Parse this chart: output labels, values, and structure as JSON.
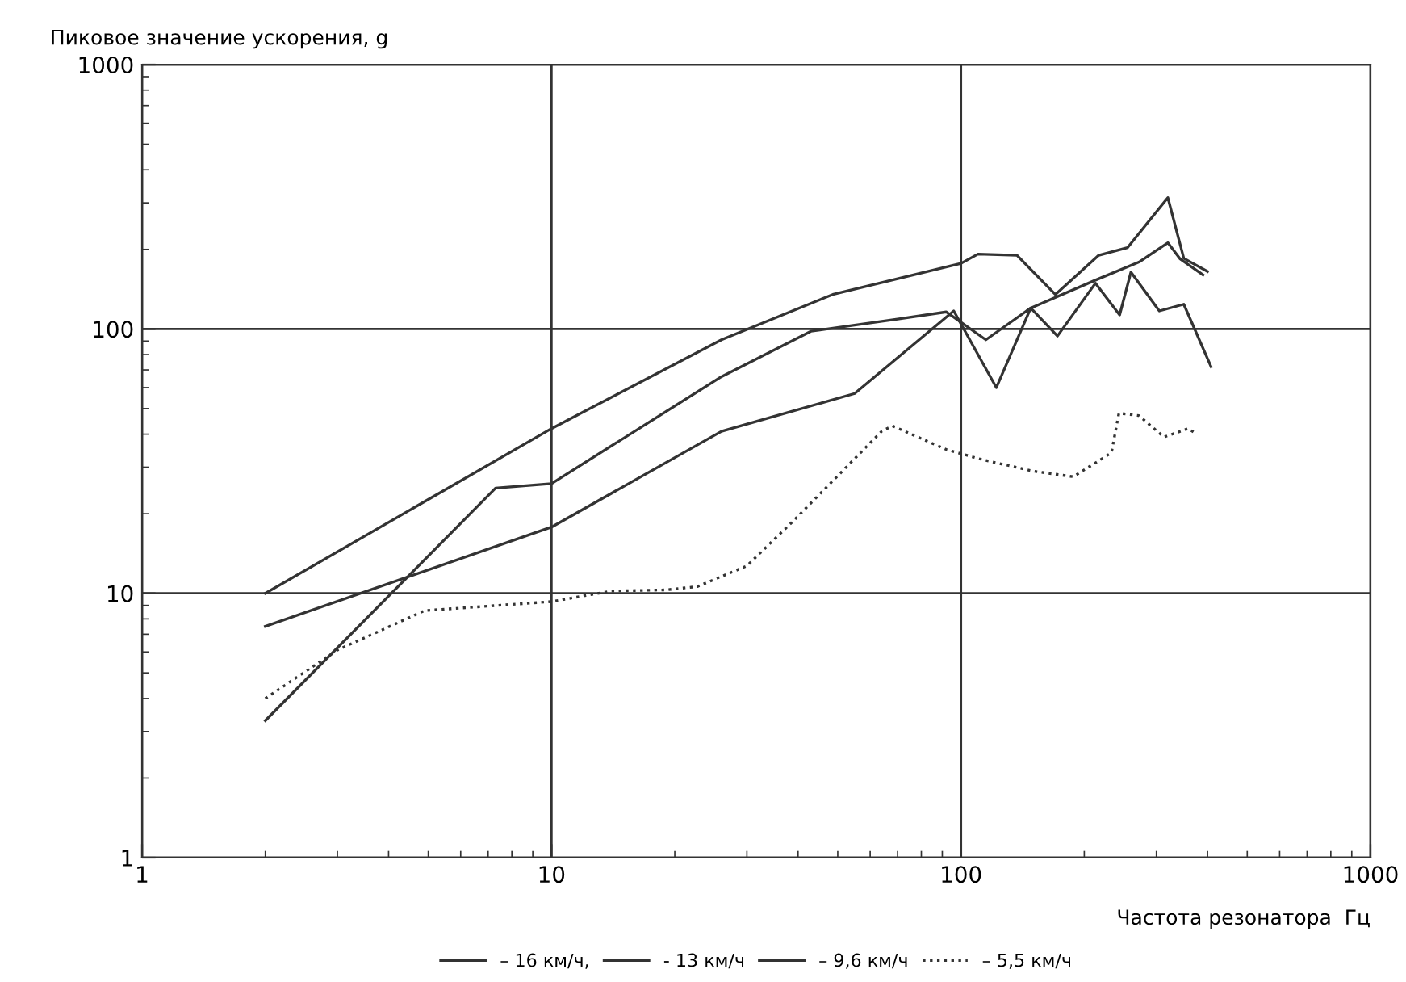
{
  "chart_data": {
    "type": "line",
    "ylabel": "Пиковое значение ускорения, g",
    "xlabel": "Частота резонатора  Гц",
    "log": "xy",
    "xlim": [
      1,
      1000
    ],
    "ylim": [
      1,
      1000
    ],
    "xticks": [
      1,
      10,
      100,
      1000
    ],
    "yticks": [
      1,
      10,
      100,
      1000
    ],
    "grid": true,
    "legend": "bottom",
    "marker": "none",
    "series": [
      {
        "name": "– 16 км/ч,",
        "color": "#333333",
        "line_style": "solid",
        "x": [
          2,
          10,
          26,
          48.6,
          100,
          110,
          137,
          170,
          217,
          255,
          320,
          350,
          400
        ],
        "values": [
          10,
          42,
          91,
          135,
          177,
          192,
          190,
          135,
          190,
          203,
          314,
          185,
          165
        ]
      },
      {
        "name": "- 13 км/ч",
        "color": "#333333",
        "line_style": "solid",
        "x": [
          2,
          7.3,
          10,
          26,
          43,
          70,
          92,
          115,
          148,
          213,
          272,
          320,
          343,
          390
        ],
        "values": [
          3.3,
          25,
          26,
          66,
          98,
          109,
          116,
          91,
          120,
          153,
          179,
          212,
          184,
          160
        ]
      },
      {
        "name": "– 9,6 км/ч",
        "color": "#333333",
        "line_style": "solid",
        "x": [
          2,
          10,
          26,
          55,
          96,
          122,
          148,
          172,
          213,
          244,
          260,
          305,
          350,
          408
        ],
        "values": [
          7.5,
          17.8,
          41,
          57,
          117,
          60,
          120,
          94,
          149,
          113,
          164,
          117,
          124,
          72
        ]
      },
      {
        "name": "– 5,5 км/ч",
        "color": "#333333",
        "line_style": "dotted",
        "x": [
          2,
          3,
          4.9,
          10,
          14,
          19,
          22.7,
          30,
          38.7,
          64,
          68,
          92,
          113,
          150,
          188,
          233,
          243,
          272,
          313,
          359,
          376
        ],
        "values": [
          4,
          6.1,
          8.6,
          9.3,
          10.2,
          10.3,
          10.6,
          12.7,
          18.6,
          41,
          43,
          35,
          32,
          29,
          27.6,
          34,
          48,
          47,
          39,
          42,
          40
        ]
      }
    ]
  }
}
